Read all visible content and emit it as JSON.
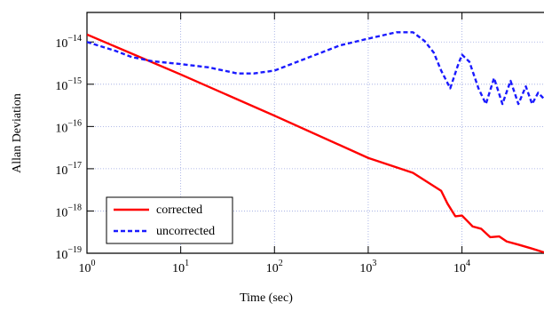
{
  "chart_data": {
    "type": "line",
    "x_label": "Time (sec)",
    "y_label": "Allan Deviation",
    "log_x": true,
    "log_y": true,
    "grid": true,
    "legend": "lower left",
    "xlim": [
      1,
      75000
    ],
    "ylim": [
      1e-19,
      5e-14
    ],
    "xticks": [
      {
        "value": 1,
        "label": "100"
      },
      {
        "value": 10,
        "label": "101"
      },
      {
        "value": 100,
        "label": "102"
      },
      {
        "value": 1000,
        "label": "103"
      },
      {
        "value": 10000,
        "label": "104"
      }
    ],
    "yticks": [
      {
        "value": 1e-19,
        "label": "10−19"
      },
      {
        "value": 1e-18,
        "label": "10−18"
      },
      {
        "value": 1e-17,
        "label": "10−17"
      },
      {
        "value": 1e-16,
        "label": "10−16"
      },
      {
        "value": 1e-15,
        "label": "10−15"
      },
      {
        "value": 1e-14,
        "label": "10−14"
      }
    ],
    "series": [
      {
        "name": "corrected",
        "color": "#ff0000",
        "dashed": false,
        "x": [
          1,
          10,
          100,
          1000,
          3000,
          6000,
          7000,
          8500,
          10000,
          13000,
          16000,
          20000,
          25000,
          30000,
          40000,
          55000,
          75000
        ],
        "values": [
          1.5e-14,
          1.7e-15,
          1.8e-16,
          1.8e-17,
          8e-18,
          3e-18,
          1.5e-18,
          7.5e-19,
          7.8e-19,
          4.3e-19,
          3.8e-19,
          2.4e-19,
          2.5e-19,
          1.9e-19,
          1.6e-19,
          1.3e-19,
          1.05e-19
        ]
      },
      {
        "name": "uncorrected",
        "color": "#1a1aff",
        "dashed": true,
        "x": [
          1,
          2,
          3,
          5,
          10,
          20,
          40,
          60,
          100,
          200,
          500,
          1000,
          2000,
          3000,
          4000,
          5000,
          6000,
          7500,
          9000,
          10000,
          12000,
          15000,
          18000,
          22000,
          27000,
          33000,
          40000,
          48000,
          56000,
          65000,
          75000
        ],
        "values": [
          1e-14,
          6.2e-15,
          4.4e-15,
          3.5e-15,
          3e-15,
          2.5e-15,
          1.8e-15,
          1.8e-15,
          2.1e-15,
          3.8e-15,
          8.3e-15,
          1.2e-14,
          1.7e-14,
          1.7e-14,
          1.05e-14,
          5.6e-15,
          2.1e-15,
          8e-16,
          2.7e-15,
          5e-15,
          3.4e-15,
          8e-16,
          3.4e-16,
          1.4e-15,
          3.4e-16,
          1.2e-15,
          3.4e-16,
          8.9e-16,
          3.4e-16,
          6.3e-16,
          4.5e-16
        ]
      }
    ]
  }
}
